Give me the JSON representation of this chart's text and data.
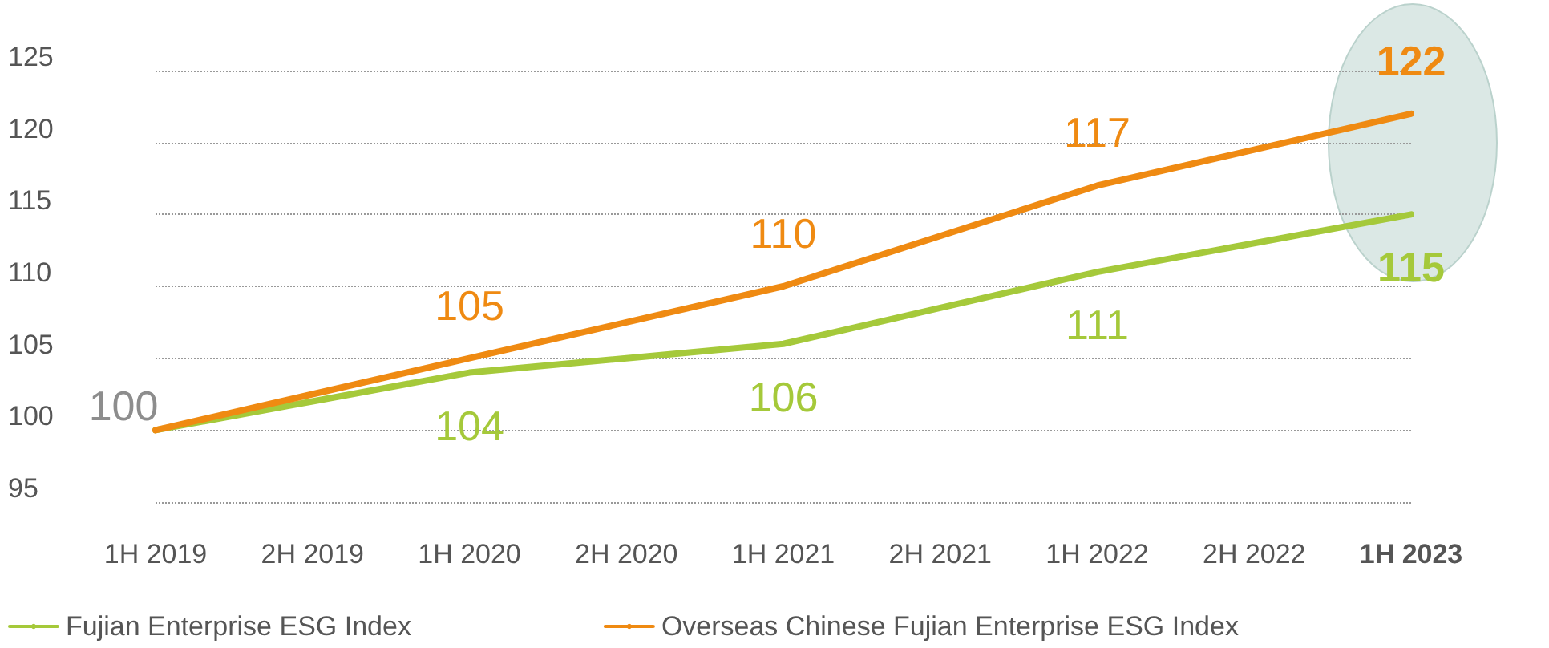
{
  "chart_data": {
    "type": "line",
    "categories": [
      "1H 2019",
      "2H 2019",
      "1H 2020",
      "2H 2020",
      "1H 2021",
      "2H 2021",
      "1H 2022",
      "2H 2022",
      "1H 2023"
    ],
    "series": [
      {
        "name": "Fujian Enterprise ESG Index",
        "color": "#a5c93a",
        "values": [
          100,
          102,
          104,
          105,
          106,
          108.5,
          111,
          113,
          115
        ],
        "value_labels": [
          null,
          null,
          "104",
          null,
          "106",
          null,
          "111",
          null,
          "115"
        ]
      },
      {
        "name": "Overseas Chinese Fujian Enterprise ESG Index",
        "color": "#ef8a12",
        "values": [
          100,
          102.5,
          105,
          107.5,
          110,
          113.5,
          117,
          119.5,
          122
        ],
        "value_labels": [
          null,
          null,
          "105",
          null,
          "110",
          null,
          "117",
          null,
          "122"
        ]
      }
    ],
    "annotations": [
      {
        "text": "100",
        "x": "1H 2019",
        "y": 100
      }
    ],
    "ylim": [
      95,
      125
    ],
    "yticks": [
      95,
      100,
      105,
      110,
      115,
      120,
      125
    ],
    "grid": "y",
    "legend": "bottom",
    "marker": "none",
    "line_style": "solid"
  }
}
